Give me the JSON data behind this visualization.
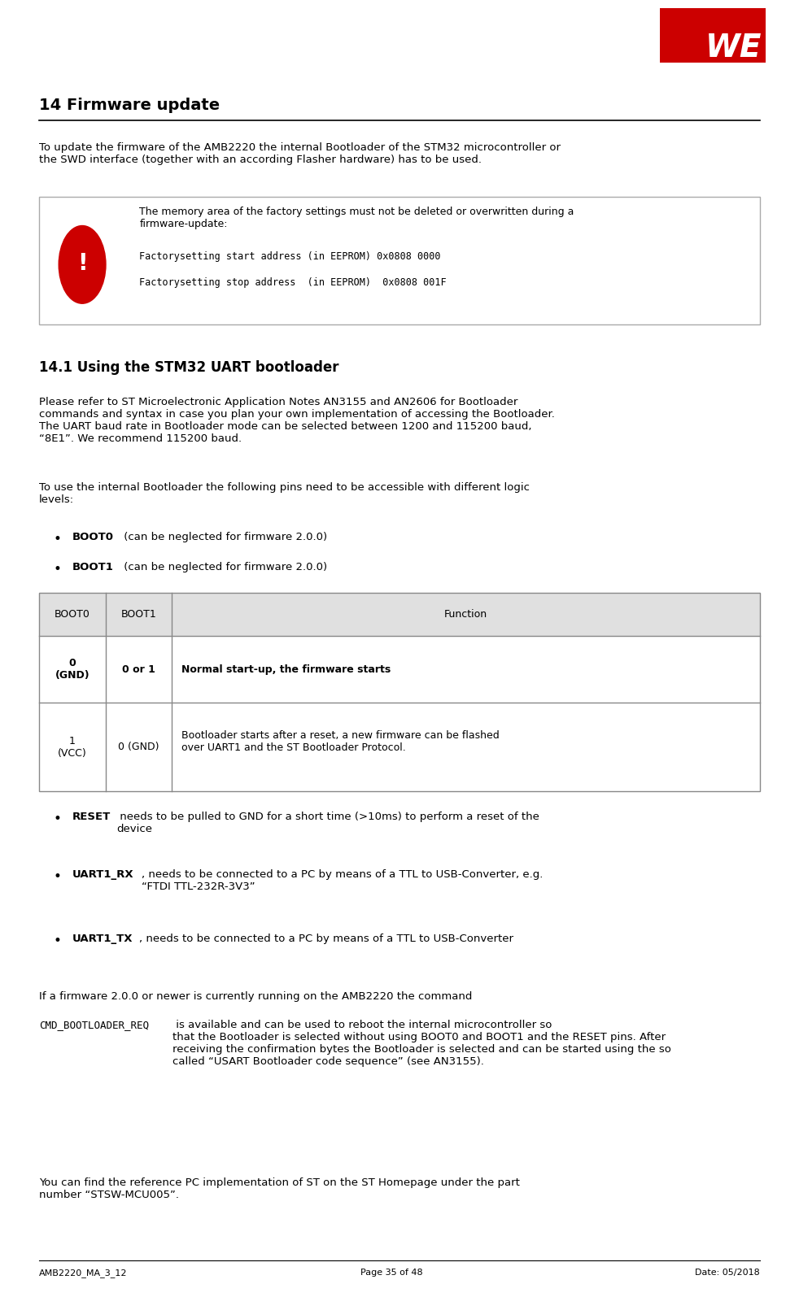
{
  "page_width": 9.82,
  "page_height": 15.95,
  "bg_color": "#ffffff",
  "logo_color": "#cc0000",
  "footer_left": "AMB2220_MA_3_12",
  "footer_center": "Page 35 of 48",
  "footer_right": "Date: 05/2018",
  "section_title": "14 Firmware update",
  "section_body": "To update the firmware of the AMB2220 the internal Bootloader of the STM32 microcontroller or\nthe SWD interface (together with an according Flasher hardware) has to be used.",
  "warning_text_line1": "The memory area of the factory settings must not be deleted or overwritten during a",
  "warning_text_line2": "firmware-update:",
  "warning_code1": "Factorysetting start address (in EEPROM) 0x0808 0000",
  "warning_code2": "Factorysetting stop address  (in EEPROM)  0x0808 001F",
  "subsection_title": "14.1 Using the STM32 UART bootloader",
  "subsection_body1": "Please refer to ST Microelectronic Application Notes AN3155 and AN2606 for Bootloader\ncommands and syntax in case you plan your own implementation of accessing the Bootloader.\nThe UART baud rate in Bootloader mode can be selected between 1200 and 115200 baud,\n“8E1”. We recommend 115200 baud.",
  "subsection_body2": "To use the internal Bootloader the following pins need to be accessible with different logic\nlevels:",
  "bullet1_bold": "BOOT0",
  "bullet1_rest": " (can be neglected for firmware 2.0.0)",
  "bullet2_bold": "BOOT1",
  "bullet2_rest": " (can be neglected for firmware 2.0.0)",
  "table_header": [
    "BOOT0",
    "BOOT1",
    "Function"
  ],
  "table_row1_col1": "0\n(GND)",
  "table_row1_col2": "0 or 1",
  "table_row1_col3": "Normal start-up, the firmware starts",
  "table_row2_col1": "1\n(VCC)",
  "table_row2_col2": "0 (GND)",
  "table_row2_col3": "Bootloader starts after a reset, a new firmware can be flashed\nover UART1 and the ST Bootloader Protocol.",
  "bullet3_bold": "RESET",
  "bullet3_rest": " needs to be pulled to GND for a short time (>10ms) to perform a reset of the\ndevice",
  "bullet4_bold": "UART1_RX",
  "bullet4_rest": ", needs to be connected to a PC by means of a TTL to USB-Converter, e.g.\n“FTDI TTL-232R-3V3”",
  "bullet5_bold": "UART1_TX",
  "bullet5_rest": ", needs to be connected to a PC by means of a TTL to USB-Converter",
  "final_para1": "If a firmware 2.0.0 or newer is currently running on the AMB2220 the command",
  "final_para1_code": "CMD_BOOTLOADER_REQ",
  "final_para1_cont": " is available and can be used to reboot the internal microcontroller so\nthat the Bootloader is selected without using BOOT0 and BOOT1 and the RESET pins. After\nreceiving the confirmation bytes the Bootloader is selected and can be started using the so\ncalled “USART Bootloader code sequence” (see AN3155).",
  "final_para2": "You can find the reference PC implementation of ST on the ST Homepage under the part\nnumber “STSW-MCU005”."
}
